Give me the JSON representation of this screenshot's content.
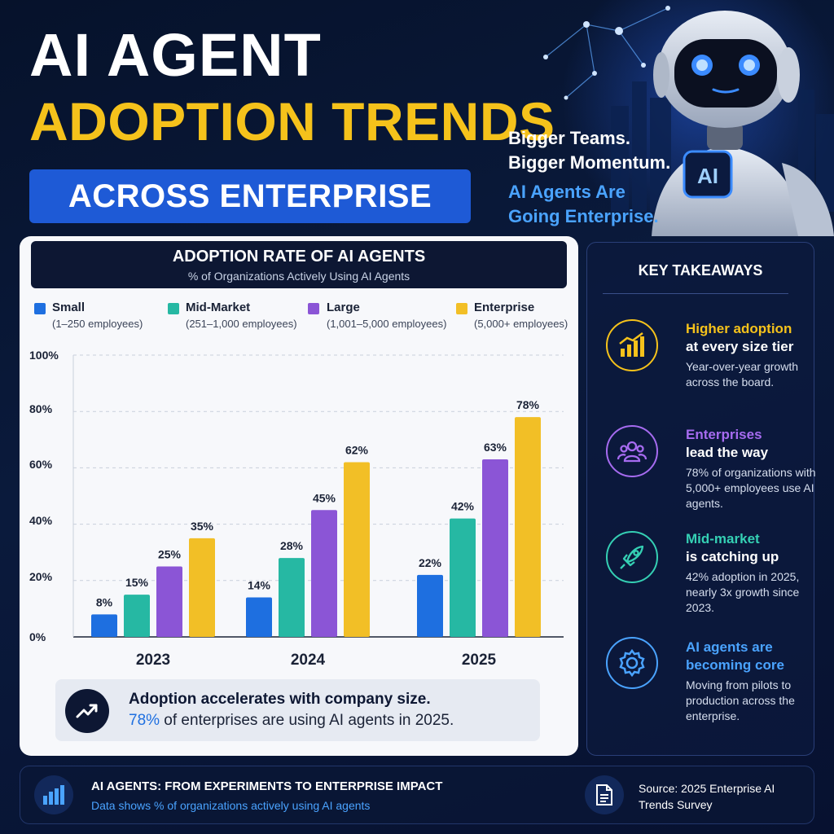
{
  "header": {
    "title_line1": "AI AGENT",
    "title_line2": "ADOPTION TRENDS",
    "title_line3": "ACROSS ENTERPRISE SIZES",
    "tagline": [
      "Bigger Teams.",
      "Bigger Momentum.",
      "AI Agents Are",
      "Going Enterprise."
    ],
    "robot_badge": "AI"
  },
  "chart_panel": {
    "title": "ADOPTION RATE OF AI AGENTS",
    "subtitle": "% of Organizations Actively Using AI Agents",
    "legend": [
      {
        "name": "Small",
        "desc": "(1–250 employees)",
        "color": "#1e6fe0"
      },
      {
        "name": "Mid-Market",
        "desc": "(251–1,000 employees)",
        "color": "#26b8a3"
      },
      {
        "name": "Large",
        "desc": "(1,001–5,000 employees)",
        "color": "#8b55d6"
      },
      {
        "name": "Enterprise",
        "desc": "(5,000+ employees)",
        "color": "#f2bf26"
      }
    ],
    "y_ticks": [
      "100%",
      "80%",
      "60%",
      "40%",
      "20%",
      "0%"
    ],
    "callout_line1": "Adoption accelerates with company size.",
    "callout_highlight": "78%",
    "callout_rest": " of enterprises are using AI agents in 2025."
  },
  "chart_data": {
    "type": "bar",
    "title": "ADOPTION RATE OF AI AGENTS",
    "subtitle": "% of Organizations Actively Using AI Agents",
    "categories": [
      "2023",
      "2024",
      "2025"
    ],
    "series": [
      {
        "name": "Small",
        "values": [
          8,
          14,
          22
        ],
        "labels": [
          "8%",
          "14%",
          "22%"
        ],
        "color": "#1e6fe0"
      },
      {
        "name": "Mid-Market",
        "values": [
          15,
          28,
          42
        ],
        "labels": [
          "15%",
          "28%",
          "42%"
        ],
        "color": "#26b8a3"
      },
      {
        "name": "Large",
        "values": [
          25,
          45,
          63
        ],
        "labels": [
          "25%",
          "45%",
          "63%"
        ],
        "color": "#8b55d6"
      },
      {
        "name": "Enterprise",
        "values": [
          35,
          62,
          78
        ],
        "labels": [
          "35%",
          "62%",
          "78%"
        ],
        "color": "#f2bf26"
      }
    ],
    "ylim": [
      0,
      100
    ],
    "grid": true,
    "legend": "top"
  },
  "takeaways": {
    "title": "KEY TAKEAWAYS",
    "items": [
      {
        "head_color": "Higher adoption",
        "head_white": "at every size tier",
        "body": "Year-over-year growth across the board.",
        "color": "#f5c21b",
        "icon": "growth-chart-icon"
      },
      {
        "head_color": "Enterprises",
        "head_white": "lead the way",
        "body": "78% of organizations with 5,000+ employees use AI agents.",
        "color": "#a66bf0",
        "icon": "team-icon"
      },
      {
        "head_color": "Mid-market",
        "head_white": "is catching up",
        "body": "42% adoption in 2025, nearly 3x growth since 2023.",
        "color": "#35d0b4",
        "icon": "rocket-icon"
      },
      {
        "head_color": "AI agents are",
        "head_white": "becoming core",
        "body": "Moving from pilots to production across the enterprise.",
        "color": "#4aa3ff",
        "icon": "gear-icon"
      }
    ]
  },
  "footer": {
    "title": "AI AGENTS: FROM EXPERIMENTS TO ENTERPRISE IMPACT",
    "subtitle": "Data shows % of organizations actively using AI agents",
    "source": "Source: 2025 Enterprise AI Trends Survey"
  }
}
